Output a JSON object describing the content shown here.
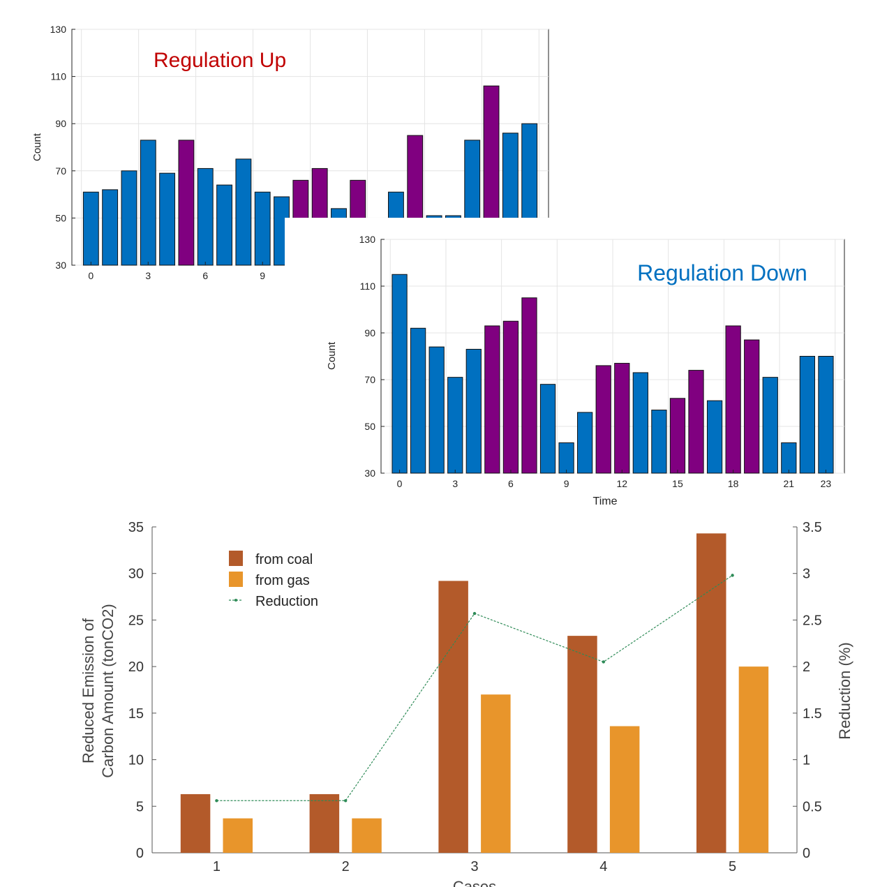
{
  "chart_data": [
    {
      "type": "bar",
      "title": "Regulation Up",
      "title_color": "#c00000",
      "xlabel": "",
      "ylabel": "Count",
      "ylim": [
        30,
        130
      ],
      "yticks": [
        30,
        50,
        70,
        90,
        110,
        130
      ],
      "xticks_visible": [
        0,
        3,
        6,
        9
      ],
      "grid": true,
      "colors": {
        "blue": "#0070c0",
        "purple": "#800080"
      },
      "x": [
        0,
        1,
        2,
        3,
        4,
        5,
        6,
        7,
        8,
        9,
        10,
        11,
        12,
        13,
        14,
        15,
        16,
        17,
        18,
        19,
        20,
        21,
        22,
        23
      ],
      "values": [
        61,
        62,
        70,
        83,
        69,
        83,
        71,
        64,
        75,
        61,
        59,
        66,
        71,
        54,
        66,
        null,
        61,
        85,
        51,
        51,
        83,
        106,
        86,
        90
      ],
      "bar_colors": [
        "blue",
        "blue",
        "blue",
        "blue",
        "blue",
        "purple",
        "blue",
        "blue",
        "blue",
        "blue",
        "blue",
        "purple",
        "purple",
        "blue",
        "purple",
        "blue",
        "blue",
        "purple",
        "blue",
        "blue",
        "blue",
        "purple",
        "blue",
        "blue"
      ]
    },
    {
      "type": "bar",
      "title": "Regulation Down",
      "title_color": "#0070c0",
      "xlabel": "Time",
      "ylabel": "Count",
      "ylim": [
        30,
        130
      ],
      "yticks": [
        30,
        50,
        70,
        90,
        110,
        130
      ],
      "xticks": [
        0,
        3,
        6,
        9,
        12,
        15,
        18,
        21,
        23
      ],
      "grid": true,
      "colors": {
        "blue": "#0070c0",
        "purple": "#800080"
      },
      "x": [
        0,
        1,
        2,
        3,
        4,
        5,
        6,
        7,
        8,
        9,
        10,
        11,
        12,
        13,
        14,
        15,
        16,
        17,
        18,
        19,
        20,
        21,
        22,
        23
      ],
      "values": [
        115,
        92,
        84,
        71,
        83,
        93,
        95,
        105,
        68,
        43,
        56,
        76,
        77,
        73,
        57,
        62,
        74,
        61,
        93,
        87,
        71,
        43,
        80,
        80
      ],
      "bar_colors": [
        "blue",
        "blue",
        "blue",
        "blue",
        "blue",
        "purple",
        "purple",
        "purple",
        "blue",
        "blue",
        "blue",
        "purple",
        "purple",
        "blue",
        "blue",
        "purple",
        "purple",
        "blue",
        "purple",
        "purple",
        "blue",
        "blue",
        "blue",
        "blue"
      ]
    },
    {
      "type": "bar",
      "xlabel": "Cases",
      "ylabel": "Reduced Emission of\nCarbon Amount (tonCO2)",
      "ylabel_lines": [
        "Reduced Emission of",
        "Carbon Amount (tonCO2)"
      ],
      "y2label": "Reduction (%)",
      "ylim": [
        0,
        35
      ],
      "y2lim": [
        0,
        3.5
      ],
      "yticks": [
        "0",
        "5",
        "10",
        "15",
        "20",
        "25",
        "30",
        "35"
      ],
      "y2ticks": [
        "0",
        "0.5",
        "1",
        "1.5",
        "2",
        "2.5",
        "3",
        "3.5"
      ],
      "categories": [
        "1",
        "2",
        "3",
        "4",
        "5"
      ],
      "legend_position": "top-left",
      "series": [
        {
          "name": "from coal",
          "color": "#b35a2a",
          "axis": "left",
          "values": [
            6.3,
            6.3,
            29.2,
            23.3,
            34.3
          ]
        },
        {
          "name": "from gas",
          "color": "#e8952b",
          "axis": "left",
          "values": [
            3.7,
            3.7,
            17.0,
            13.6,
            20.0
          ]
        },
        {
          "name": "Reduction",
          "color": "#2e8b57",
          "axis": "right",
          "type": "line",
          "values": [
            0.56,
            0.56,
            2.57,
            2.05,
            2.98
          ]
        }
      ]
    }
  ]
}
